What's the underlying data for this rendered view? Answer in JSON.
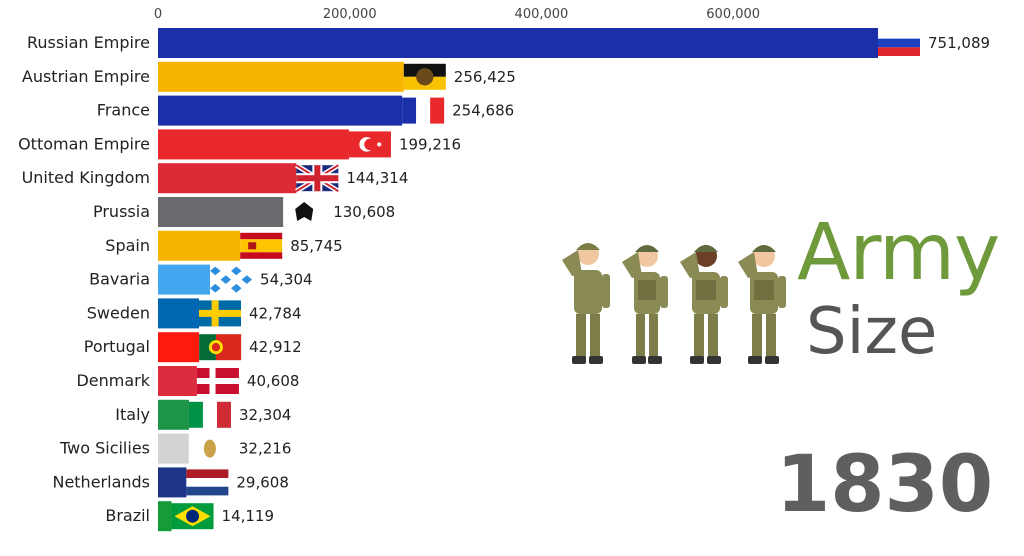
{
  "chart_data": {
    "type": "bar",
    "orientation": "horizontal",
    "axis_ticks": [
      0,
      200000,
      400000,
      600000
    ],
    "axis_tick_labels": [
      "0",
      "200,000",
      "400,000",
      "600,000"
    ],
    "xlim": [
      0,
      751089
    ],
    "grid": false,
    "categories": [
      "Russian Empire",
      "Austrian Empire",
      "France",
      "Ottoman Empire",
      "United Kingdom",
      "Prussia",
      "Spain",
      "Bavaria",
      "Sweden",
      "Portugal",
      "Denmark",
      "Italy",
      "Two Sicilies",
      "Netherlands",
      "Brazil"
    ],
    "values": [
      751089,
      256425,
      254686,
      199216,
      144314,
      130608,
      85745,
      54304,
      42784,
      42912,
      40608,
      32304,
      32216,
      29608,
      14119
    ],
    "value_labels": [
      "751,089",
      "256,425",
      "254,686",
      "199,216",
      "144,314",
      "130,608",
      "85,745",
      "54,304",
      "42,784",
      "42,912",
      "40,608",
      "32,304",
      "32,216",
      "29,608",
      "14,119"
    ],
    "bar_colors": [
      "#1a2fa8",
      "#f7b500",
      "#1a2fa8",
      "#e8282b",
      "#dc2a36",
      "#6b6a6e",
      "#f7b500",
      "#43a7f0",
      "#0068b3",
      "#ff1a0f",
      "#dc2d3f",
      "#1e9448",
      "#d3d3d3",
      "#1e3487",
      "#169b3a"
    ],
    "flags": [
      "russia",
      "austria",
      "france",
      "ottoman",
      "uk",
      "prussia",
      "spain",
      "bavaria",
      "sweden",
      "portugal",
      "denmark",
      "italy",
      "two-sicilies",
      "netherlands",
      "brazil"
    ]
  },
  "overlay": {
    "title_word1": "Army",
    "title_word2": "Size",
    "year": "1830"
  },
  "colors": {
    "army_text": "#6f9a3c",
    "size_text": "#555555",
    "year_text": "#5f5f5f",
    "uniform": "#8a8a55"
  }
}
